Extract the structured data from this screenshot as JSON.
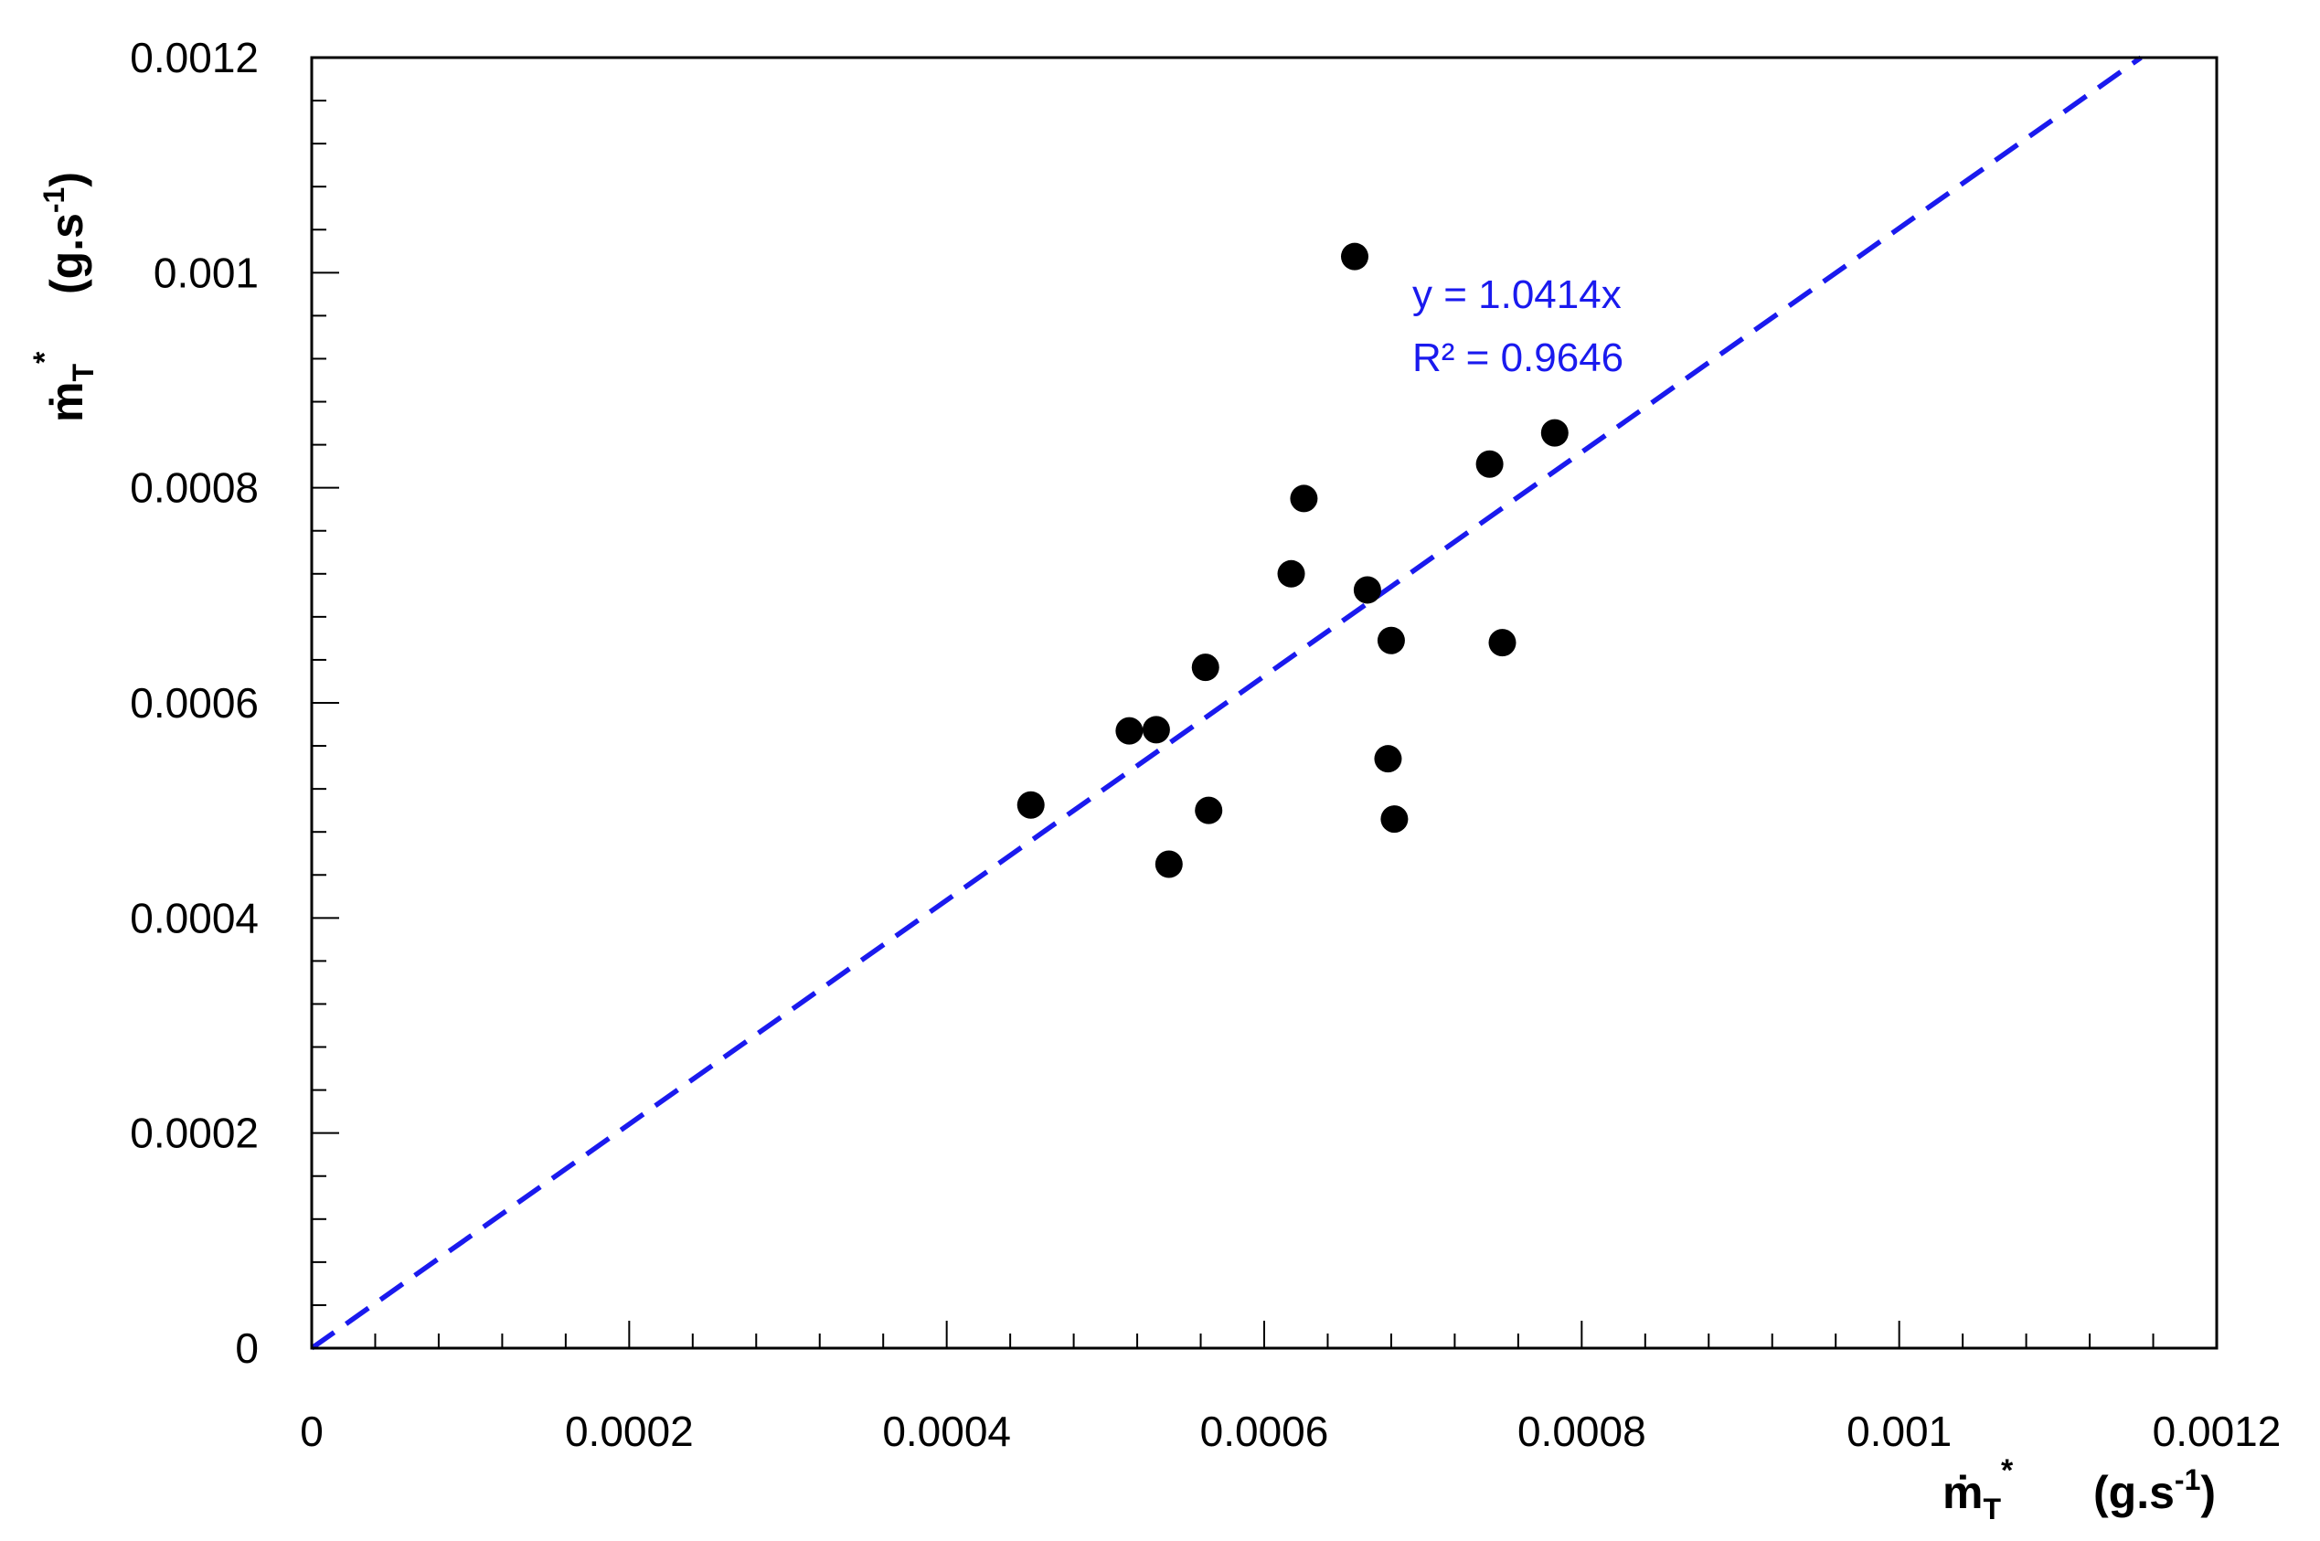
{
  "chart_data": {
    "type": "scatter",
    "xlim": [
      0,
      0.0012
    ],
    "ylim": [
      0,
      0.0012
    ],
    "x_ticks": [
      "0",
      "0.0002",
      "0.0004",
      "0.0006",
      "0.0008",
      "0.001",
      "0.0012"
    ],
    "y_ticks": [
      "0",
      "0.0002",
      "0.0004",
      "0.0006",
      "0.0008",
      "0.001",
      "0.0012"
    ],
    "tick_values": [
      0,
      0.0002,
      0.0004,
      0.0006,
      0.0008,
      0.001,
      0.0012
    ],
    "minor_ticks_per_major": 5,
    "grid": false,
    "xlabel": {
      "symbol": "ṁ",
      "sub": "T",
      "sup": "*",
      "unit_base": "(g.s",
      "unit_sup": "-1",
      "unit_close": ")"
    },
    "ylabel": {
      "symbol": "ṁ",
      "sub": "T",
      "sup": "*",
      "unit_base": "(g.s",
      "unit_sup": "-1",
      "unit_close": ")"
    },
    "points": [
      {
        "x": 0.000453,
        "y": 0.000505
      },
      {
        "x": 0.000515,
        "y": 0.000574
      },
      {
        "x": 0.000532,
        "y": 0.000575
      },
      {
        "x": 0.00054,
        "y": 0.00045
      },
      {
        "x": 0.000563,
        "y": 0.000633
      },
      {
        "x": 0.000565,
        "y": 0.0005
      },
      {
        "x": 0.000617,
        "y": 0.00072
      },
      {
        "x": 0.000625,
        "y": 0.00079
      },
      {
        "x": 0.000657,
        "y": 0.001015
      },
      {
        "x": 0.000665,
        "y": 0.000705
      },
      {
        "x": 0.000678,
        "y": 0.000548
      },
      {
        "x": 0.00068,
        "y": 0.000658
      },
      {
        "x": 0.000682,
        "y": 0.000492
      },
      {
        "x": 0.000742,
        "y": 0.000822
      },
      {
        "x": 0.00075,
        "y": 0.000656
      },
      {
        "x": 0.000783,
        "y": 0.000851
      }
    ],
    "trendline": {
      "slope": 1.0414,
      "equation": "y = 1.0414x",
      "r2_text": "R² = 0.9646",
      "color": "#1a1aee",
      "style": "dashed"
    },
    "marker_color": "#000000"
  }
}
